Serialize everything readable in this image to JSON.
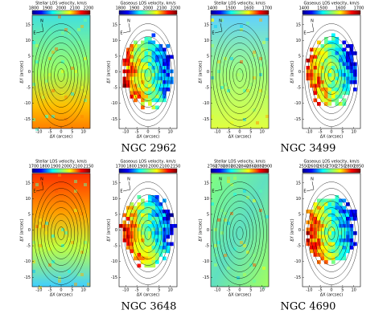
{
  "panels": [
    {
      "title": "Stellar LOS velocity, km/s",
      "colorbar_ticks": [
        1800,
        1900,
        2000,
        2100,
        2200
      ],
      "xlabel": "ΔX (arcsec)",
      "ylabel": "ΔY (arcsec)",
      "xticks": [
        -10,
        -5,
        0,
        5,
        10
      ],
      "yticks": [
        15,
        10,
        5,
        0,
        -5,
        -10,
        -15
      ]
    },
    {
      "title": "Gaseous LOS velocity, km/s",
      "colorbar_ticks": [
        1800,
        1900,
        2000,
        2100,
        2200
      ],
      "xlabel": "ΔX (arcsec)",
      "ylabel": "ΔY (arcsec)",
      "xticks": [
        -10,
        -5,
        0,
        5,
        10
      ],
      "yticks": [
        15,
        10,
        5,
        0,
        -5,
        -10,
        -15
      ]
    },
    {
      "title": "Stellar LOS velocity, km/s",
      "colorbar_ticks": [
        1400,
        1500,
        1600,
        1700
      ],
      "xlabel": "ΔX (arcsec)",
      "ylabel": "ΔY (arcsec)",
      "xticks": [
        -10,
        -5,
        0,
        5,
        10
      ],
      "yticks": [
        15,
        10,
        5,
        0,
        -5,
        -10,
        -15
      ]
    },
    {
      "title": "Gaseous LOS velocity, km/s",
      "colorbar_ticks": [
        1400,
        1500,
        1600,
        1700
      ],
      "xlabel": "ΔX (arcsec)",
      "ylabel": "ΔY (arcsec)",
      "xticks": [
        -10,
        -5,
        0,
        5,
        10
      ],
      "yticks": [
        15,
        10,
        5,
        0,
        -5,
        -10,
        -15
      ]
    },
    {
      "title": "Stellar LOS velocity, km/s",
      "colorbar_ticks": [
        1700,
        1800,
        1900,
        2000,
        2100,
        2150
      ],
      "xlabel": "ΔX (arcsec)",
      "ylabel": "ΔY (arcsec)",
      "xticks": [
        -10,
        -5,
        0,
        5,
        10
      ],
      "yticks": [
        15,
        10,
        5,
        0,
        -5,
        -10,
        -15
      ]
    },
    {
      "title": "Gaseous LOS velocity, km/s",
      "colorbar_ticks": [
        1700,
        1800,
        1900,
        2000,
        2100,
        2150
      ],
      "xlabel": "ΔX (arcsec)",
      "ylabel": "ΔY (arcsec)",
      "xticks": [
        -10,
        -5,
        0,
        5,
        10
      ],
      "yticks": [
        15,
        10,
        5,
        0,
        -5,
        -10,
        -15
      ]
    },
    {
      "title": "Stellar LOS velocity, km/s",
      "colorbar_ticks": [
        2760,
        2780,
        2800,
        2820,
        2840,
        2860,
        2880,
        2900
      ],
      "xlabel": "ΔX (arcsec)",
      "ylabel": "ΔY (arcsec)",
      "xticks": [
        -10,
        -5,
        0,
        5,
        10
      ],
      "yticks": [
        15,
        10,
        5,
        0,
        -5,
        -10,
        -15
      ]
    },
    {
      "title": "Gaseous LOS velocity, km/s",
      "colorbar_ticks": [
        2550,
        2600,
        2650,
        2700,
        2750,
        2800,
        2850
      ],
      "xlabel": "ΔX (arcsec)",
      "ylabel": "ΔY (arcsec)",
      "xticks": [
        -10,
        -5,
        0,
        5,
        10
      ],
      "yticks": [
        15,
        10,
        5,
        0,
        -5,
        -10,
        -15
      ]
    }
  ],
  "compass": {
    "north": "N",
    "east": "E"
  },
  "galaxies": [
    "NGC 2962",
    "NGC 3499",
    "NGC 3648",
    "NGC 4690"
  ]
}
